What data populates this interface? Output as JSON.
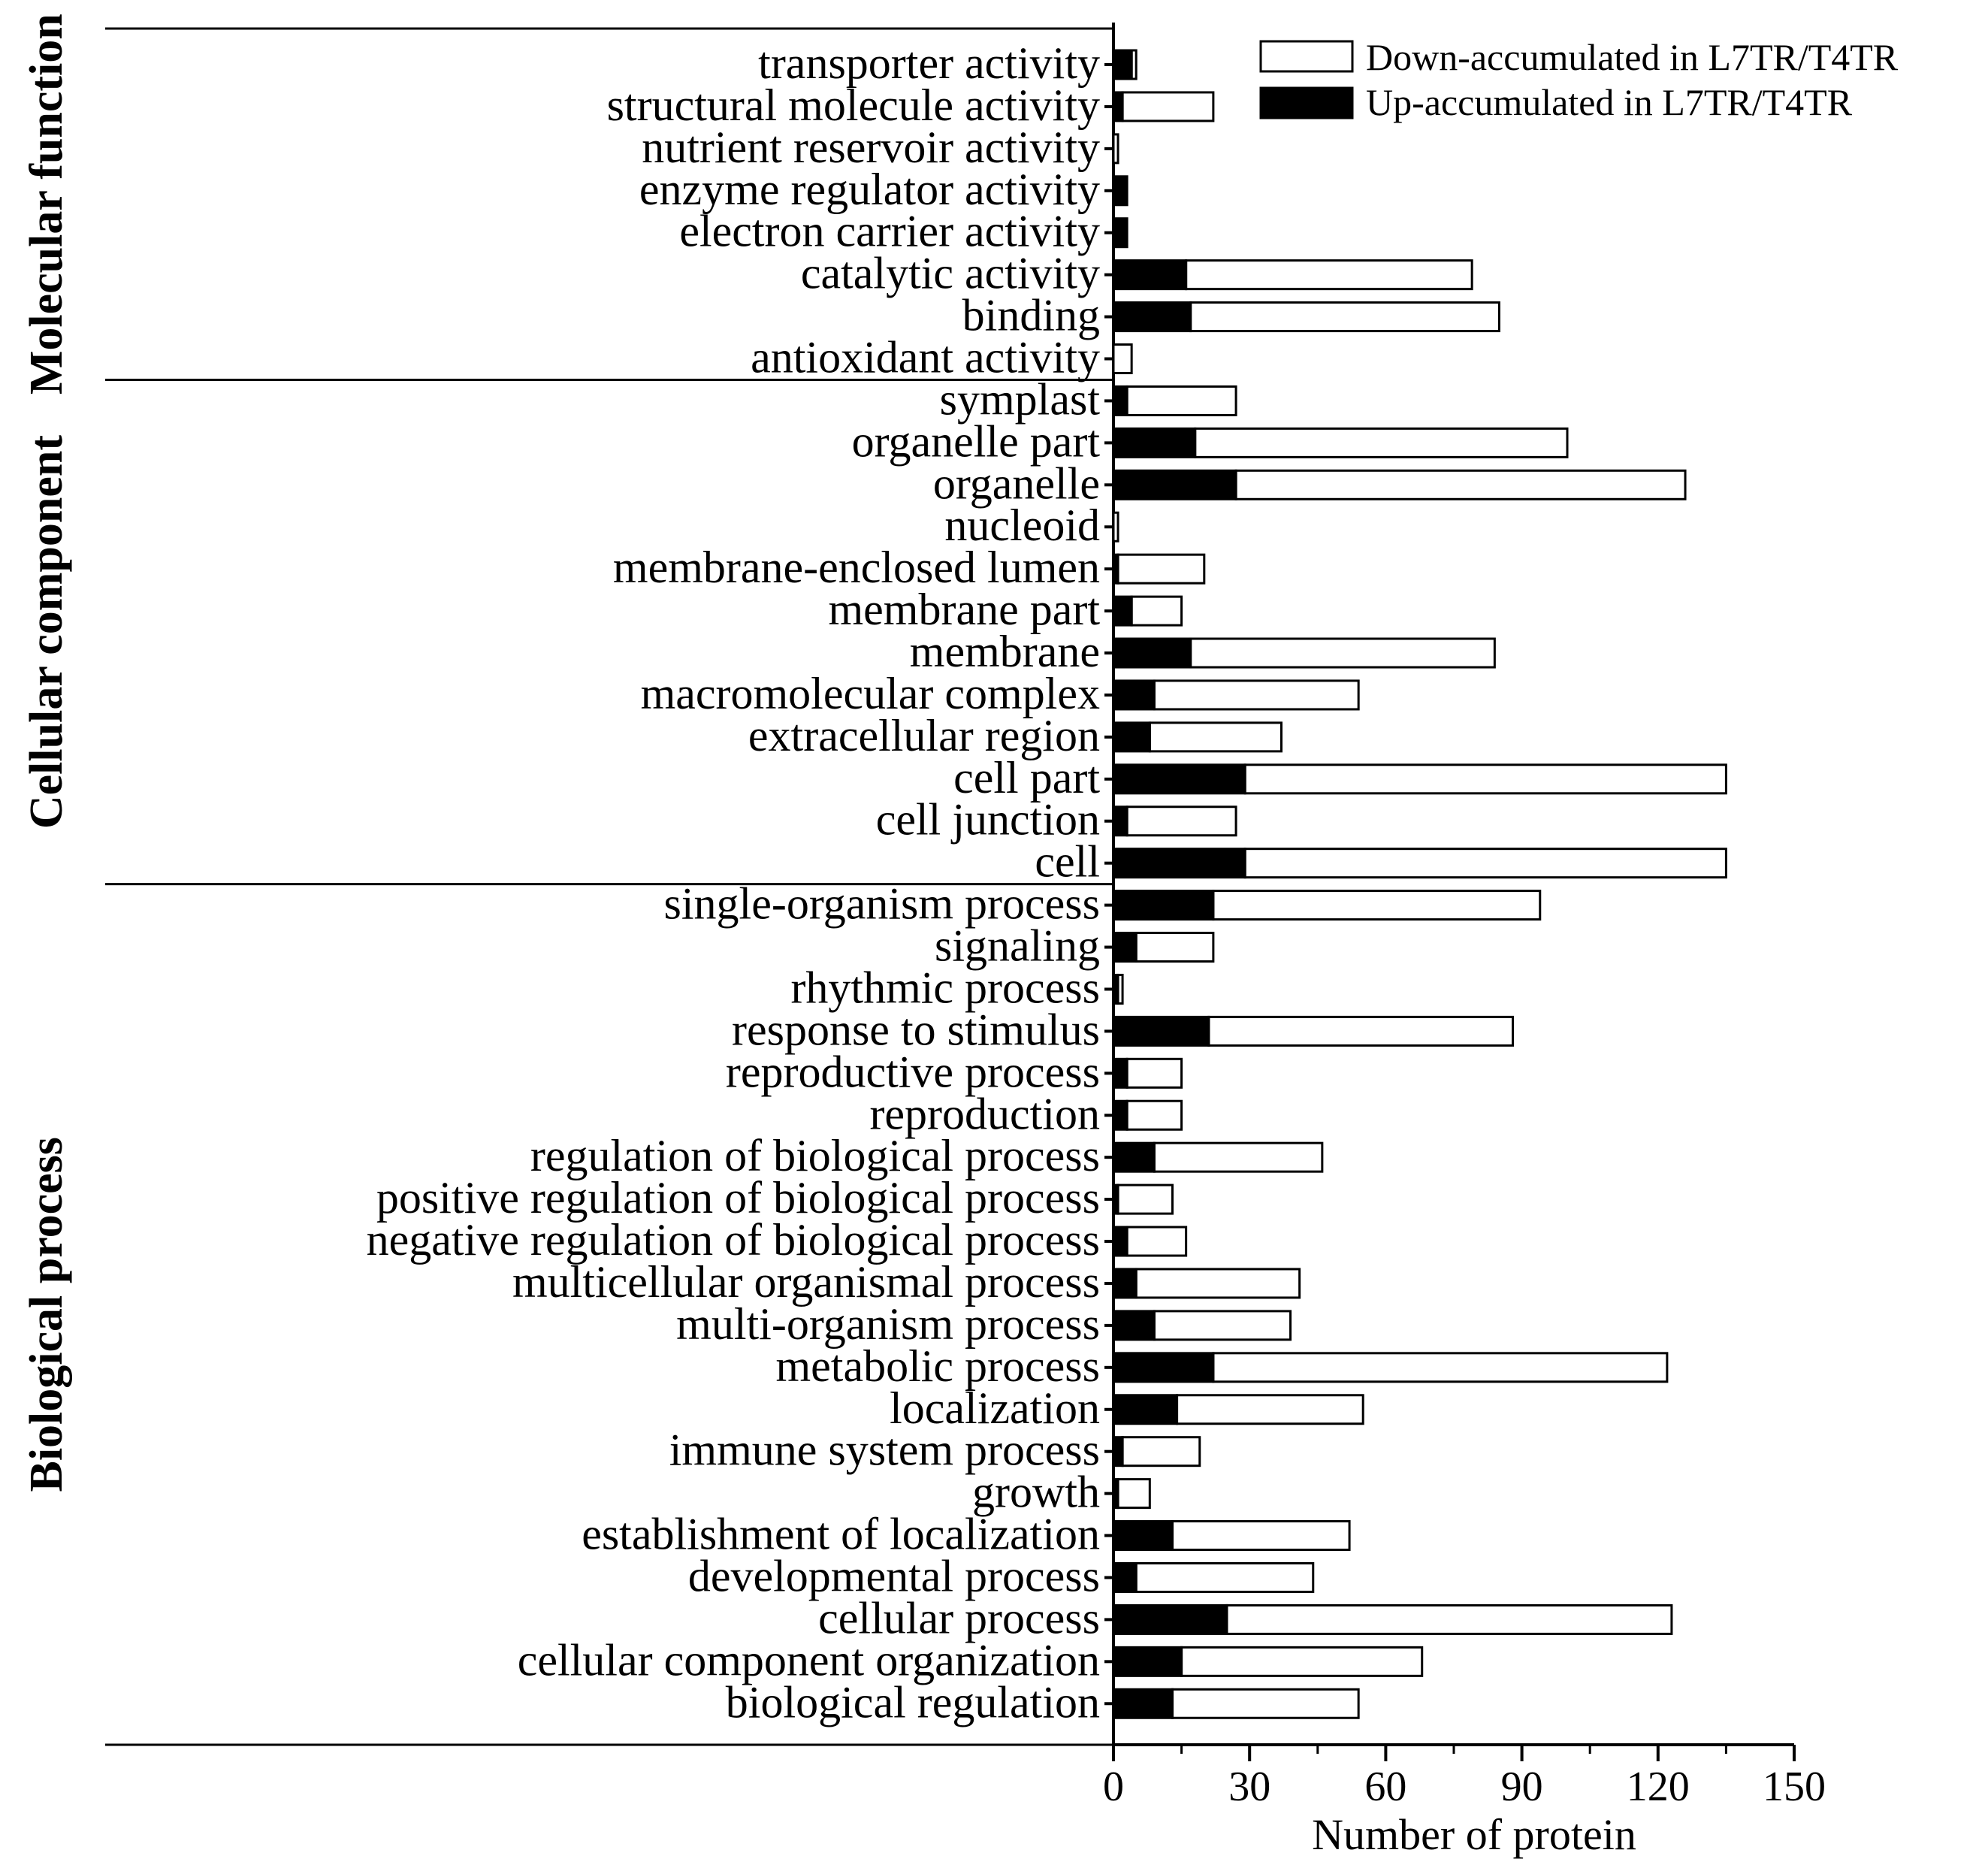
{
  "chart_data": {
    "type": "bar",
    "orientation": "horizontal",
    "stacked": true,
    "xlabel": "Number of protein",
    "xlim": [
      0,
      150
    ],
    "xticks": [
      0,
      30,
      60,
      90,
      120,
      150
    ],
    "legend": {
      "position": "top-right",
      "entries": [
        {
          "name": "Down-accumulated in L7TR/T4TR",
          "fill": "#ffffff"
        },
        {
          "name": "Up-accumulated in L7TR/T4TR",
          "fill": "#000000"
        }
      ]
    },
    "groups": [
      {
        "name": "Molecular function",
        "categories": [
          "transporter activity",
          "structural molecule activity",
          "nutrient reservoir activity",
          "enzyme regulator activity",
          "electron carrier activity",
          "catalytic activity",
          "binding",
          "antioxidant activity"
        ],
        "series": [
          {
            "name": "Up-accumulated in L7TR/T4TR",
            "values": [
              4,
              2,
              0,
              3,
              3,
              16,
              17,
              0
            ]
          },
          {
            "name": "Down-accumulated in L7TR/T4TR",
            "values": [
              1,
              20,
              1,
              0,
              0,
              63,
              68,
              4
            ]
          }
        ]
      },
      {
        "name": "Cellular component",
        "categories": [
          "symplast",
          "organelle part",
          "organelle",
          "nucleoid",
          "membrane-enclosed lumen",
          "membrane part",
          "membrane",
          "macromolecular complex",
          "extracellular region",
          "cell part",
          "cell junction",
          "cell"
        ],
        "series": [
          {
            "name": "Up-accumulated in L7TR/T4TR",
            "values": [
              3,
              18,
              27,
              0,
              1,
              4,
              17,
              9,
              8,
              29,
              3,
              29
            ]
          },
          {
            "name": "Down-accumulated in L7TR/T4TR",
            "values": [
              24,
              82,
              99,
              1,
              19,
              11,
              67,
              45,
              29,
              106,
              24,
              106
            ]
          }
        ]
      },
      {
        "name": "Biological process",
        "categories": [
          "single-organism process",
          "signaling",
          "rhythmic process",
          "response to stimulus",
          "reproductive process",
          "reproduction",
          "regulation of biological process",
          "positive regulation of biological process",
          "negative regulation of biological process",
          "multicellular organismal process",
          "multi-organism process",
          "metabolic process",
          "localization",
          "immune system process",
          "growth",
          "establishment of localization",
          "developmental process",
          "cellular process",
          "cellular component organization",
          "biological regulation"
        ],
        "series": [
          {
            "name": "Up-accumulated in L7TR/T4TR",
            "values": [
              22,
              5,
              1,
              21,
              3,
              3,
              9,
              1,
              3,
              5,
              9,
              22,
              14,
              2,
              1,
              13,
              5,
              25,
              15,
              13
            ]
          },
          {
            "name": "Down-accumulated in L7TR/T4TR",
            "values": [
              72,
              17,
              1,
              67,
              12,
              12,
              37,
              12,
              13,
              36,
              30,
              100,
              41,
              17,
              7,
              39,
              39,
              98,
              53,
              41
            ]
          }
        ]
      }
    ]
  }
}
